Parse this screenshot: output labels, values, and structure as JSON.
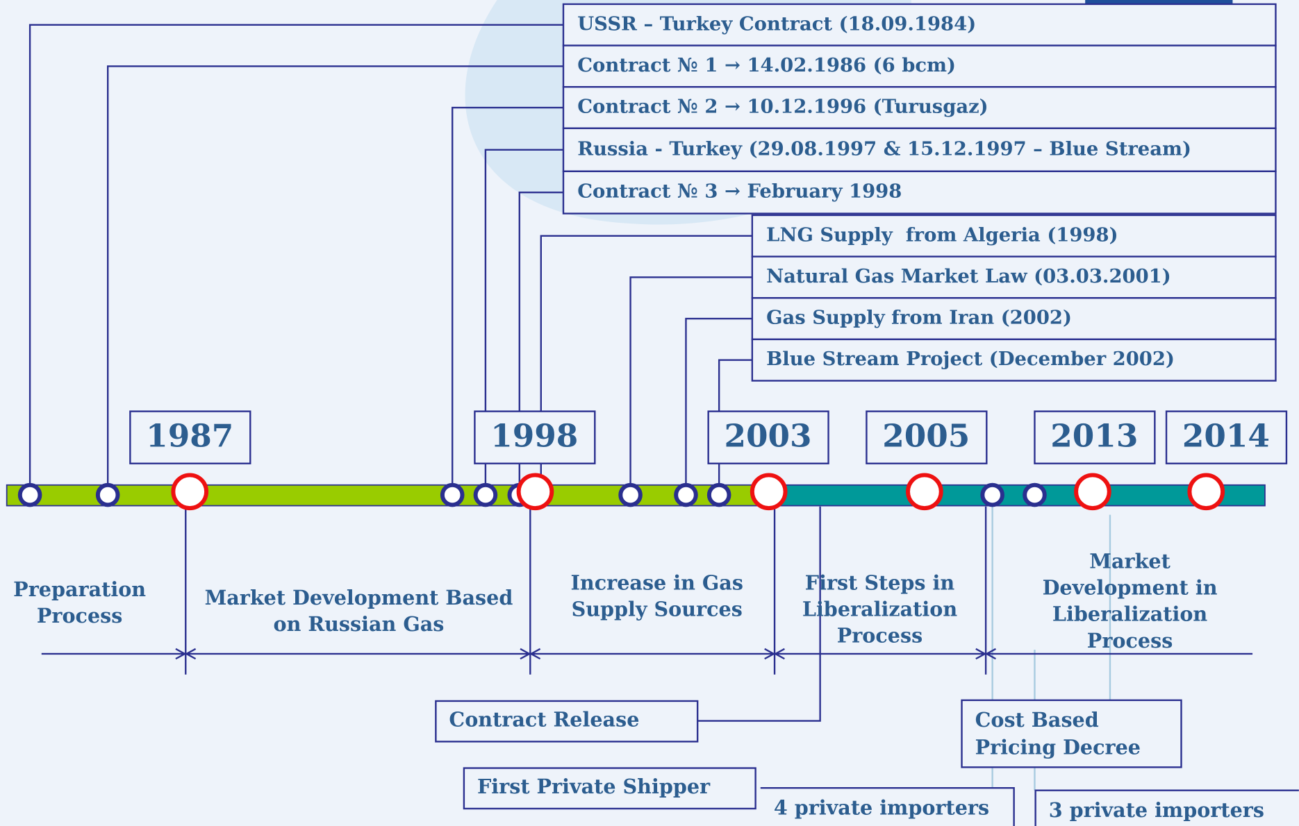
{
  "events_top": [
    "USSR – Turkey Contract (18.09.1984)",
    "Contract № 1 → 14.02.1986 (6 bcm)",
    "Contract № 2 → 10.12.1996 (Turusgaz)",
    "Russia - Turkey (29.08.1997 & 15.12.1997 – Blue Stream)",
    "Contract № 3 → February 1998",
    "LNG Supply  from Algeria (1998)",
    "Natural Gas Market Law (03.03.2001)",
    "Gas Supply from Iran (2002)",
    "Blue Stream Project (December 2002)"
  ],
  "years": [
    "1987",
    "1998",
    "2003",
    "2005",
    "2013",
    "2014"
  ],
  "phases": [
    [
      "Preparation",
      "Process"
    ],
    [
      "Market Development Based",
      "on Russian Gas"
    ],
    [
      "Increase in Gas",
      "Supply Sources"
    ],
    [
      "First Steps in",
      "Liberalization",
      "Process"
    ],
    [
      "Market",
      "Development in",
      "Liberalization",
      "Process"
    ]
  ],
  "events_bottom": [
    [
      "Contract Release"
    ],
    [
      "First Private Shipper"
    ],
    [
      "Cost Based",
      "Pricing Decree"
    ],
    [
      "4 private importers"
    ],
    [
      "3 private importers"
    ]
  ]
}
